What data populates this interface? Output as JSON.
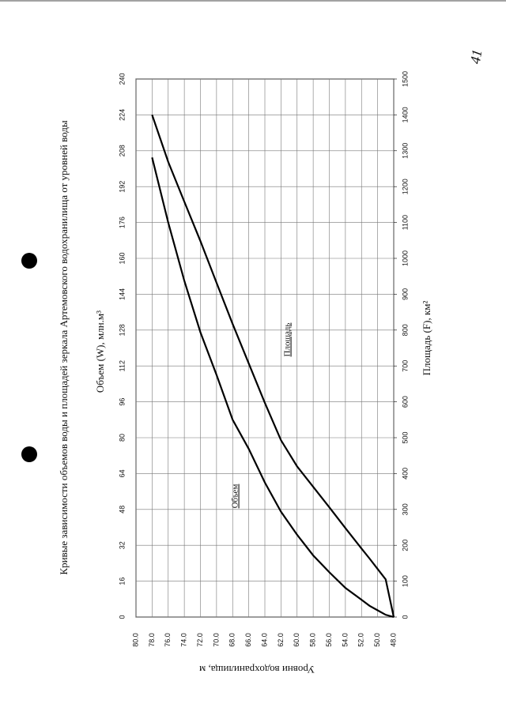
{
  "page_number": "41",
  "chart_data": {
    "type": "line",
    "title": "Кривые зависимости объемов воды и площадей зеркала Артемовского водохранилища от уровней воды",
    "x_label": "Объем (W),  млн.м³",
    "x2_label": "Площадь (F), км²",
    "y_label": "Уровни водохранилища, м",
    "levels": [
      48,
      49,
      50,
      51,
      52,
      54,
      56,
      58,
      60,
      62,
      64,
      66,
      68,
      70,
      72,
      74,
      76,
      78
    ],
    "series": [
      {
        "name": "Объем",
        "axis": "x",
        "color": "#000000",
        "values": [
          0,
          1,
          3,
          5,
          7.7,
          13,
          20,
          27.5,
          36.7,
          47,
          60,
          75,
          88,
          108,
          127,
          150,
          176,
          205
        ]
      },
      {
        "name": "Площадь",
        "axis": "x2",
        "color": "#000000",
        "values": [
          0,
          105,
          134,
          163,
          191,
          248,
          306,
          363,
          420,
          493,
          597,
          707,
          817,
          932,
          1048,
          1158,
          1269,
          1400
        ]
      }
    ],
    "xlim": [
      0,
      240
    ],
    "xticks": [
      0,
      16,
      32,
      48,
      64,
      80,
      96,
      112,
      128,
      144,
      160,
      176,
      192,
      208,
      224,
      240
    ],
    "x2lim": [
      0,
      1500
    ],
    "x2ticks": [
      0,
      100,
      200,
      300,
      400,
      500,
      600,
      700,
      800,
      900,
      1000,
      1100,
      1200,
      1300,
      1400,
      1500
    ],
    "ylim": [
      48,
      80
    ],
    "yticks": [
      {
        "value": 48,
        "label": "48.0"
      },
      {
        "value": 50,
        "label": "50.0"
      },
      {
        "value": 52,
        "label": "52.0"
      },
      {
        "value": 54,
        "label": "54.0"
      },
      {
        "value": 56,
        "label": "56.0"
      },
      {
        "value": 58,
        "label": "58.0"
      },
      {
        "value": 60,
        "label": "60.0"
      },
      {
        "value": 62,
        "label": "62.0"
      },
      {
        "value": 64,
        "label": "64.0"
      },
      {
        "value": 66,
        "label": "66.0"
      },
      {
        "value": 68,
        "label": "68.0"
      },
      {
        "value": 70,
        "label": "70.0"
      },
      {
        "value": 72,
        "label": "72.0"
      },
      {
        "value": 74,
        "label": "74.0"
      },
      {
        "value": 76,
        "label": "76.0"
      },
      {
        "value": 78,
        "label": "78.0"
      },
      {
        "value": 80,
        "label": "80.0"
      }
    ],
    "grid": true
  }
}
